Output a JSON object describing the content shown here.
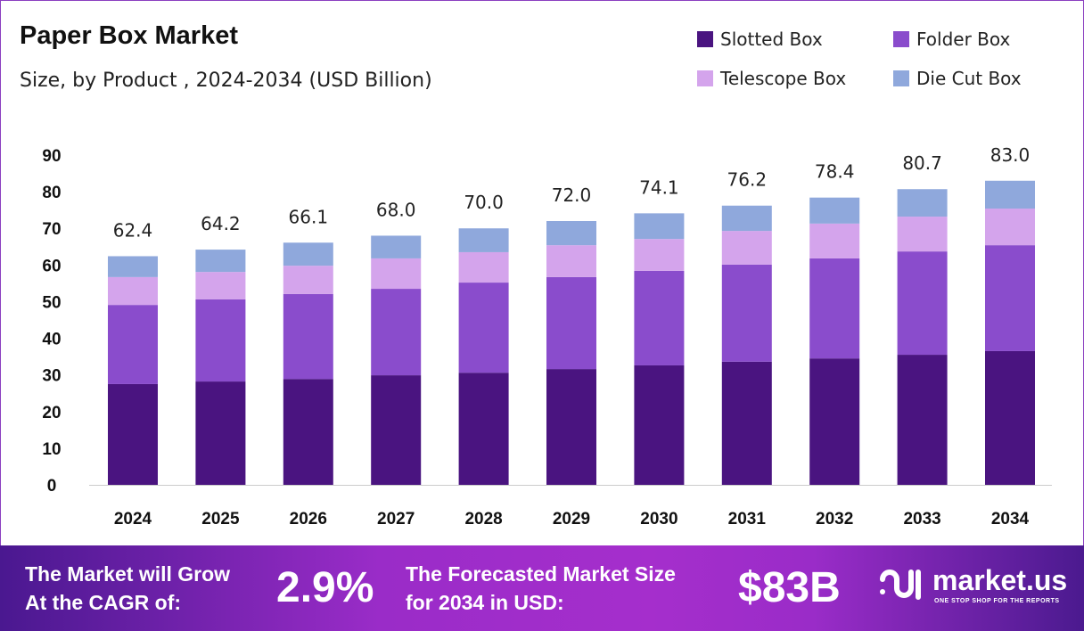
{
  "chart_data": {
    "type": "bar",
    "stacked": true,
    "title": "Paper Box Market",
    "subtitle": "Size, by Product , 2024-2034 (USD Billion)",
    "categories": [
      "2024",
      "2025",
      "2026",
      "2027",
      "2028",
      "2029",
      "2030",
      "2031",
      "2032",
      "2033",
      "2034"
    ],
    "series": [
      {
        "name": "Slotted Box",
        "color": "#4a1480",
        "values": [
          27.5,
          28.2,
          28.9,
          29.9,
          30.6,
          31.6,
          32.6,
          33.6,
          34.5,
          35.5,
          36.5
        ]
      },
      {
        "name": "Folder Box",
        "color": "#8a4ccc",
        "values": [
          21.6,
          22.4,
          23.2,
          23.6,
          24.6,
          25.1,
          25.8,
          26.5,
          27.3,
          28.2,
          28.9
        ]
      },
      {
        "name": "Telescope Box",
        "color": "#d4a4ec",
        "values": [
          7.6,
          7.5,
          7.7,
          8.3,
          8.3,
          8.7,
          8.7,
          9.2,
          9.5,
          9.5,
          10.0
        ]
      },
      {
        "name": "Die Cut Box",
        "color": "#8fa8dc",
        "values": [
          5.7,
          6.1,
          6.3,
          6.2,
          6.5,
          6.6,
          7.0,
          6.9,
          7.1,
          7.5,
          7.6
        ]
      }
    ],
    "totals": [
      "62.4",
      "64.2",
      "66.1",
      "68.0",
      "70.0",
      "72.0",
      "74.1",
      "76.2",
      "78.4",
      "80.7",
      "83.0"
    ],
    "yticks": [
      "0",
      "10",
      "20",
      "30",
      "40",
      "50",
      "60",
      "70",
      "80",
      "90"
    ],
    "ylim": [
      0,
      90
    ],
    "grid": false,
    "legend_position": "top-right"
  },
  "banner": {
    "cagr_label_1": "The Market will Grow",
    "cagr_label_2": "At the CAGR of:",
    "cagr_value": "2.9%",
    "forecast_label_1": "The Forecasted Market Size",
    "forecast_label_2": "for 2034 in USD:",
    "forecast_value": "$83B",
    "logo_name": "market.us",
    "logo_tagline": "ONE STOP SHOP FOR THE REPORTS"
  }
}
